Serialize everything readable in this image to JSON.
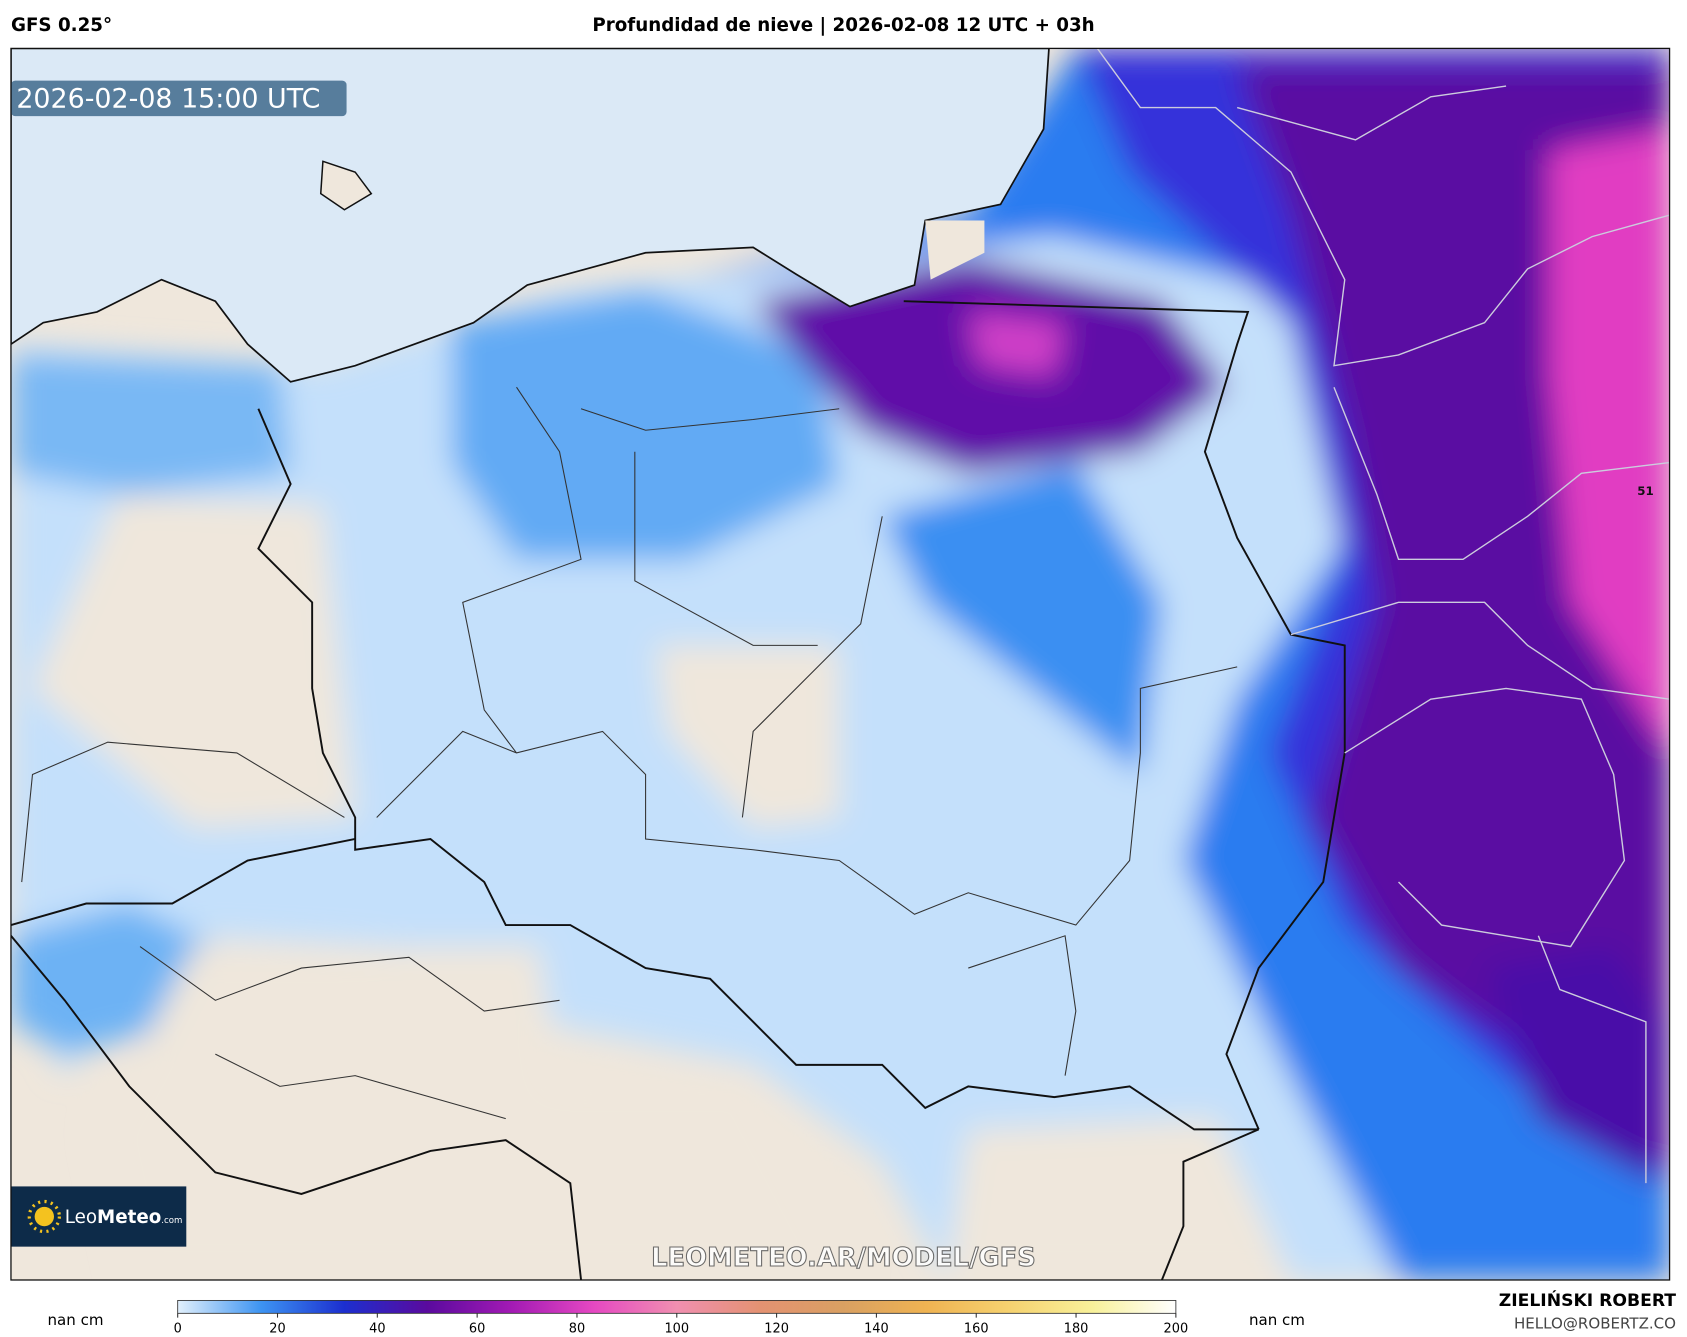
{
  "header": {
    "model": "GFS 0.25°",
    "title": "Profundidad de nieve | 2026-02-08 12 UTC + 03h"
  },
  "map": {
    "valid_time": "2026-02-08 15:00 UTC",
    "watermark": "LEOMETEO.AR/MODEL/GFS",
    "edge_label": "51",
    "logo": {
      "leo": "Leo",
      "meteo": "Meteo",
      "suffix": ".com"
    }
  },
  "colorbar": {
    "lim": [
      0,
      200
    ],
    "ticks": [
      0,
      20,
      40,
      60,
      80,
      100,
      120,
      140,
      160,
      180,
      200
    ],
    "colors": [
      "#e2f0fc",
      "#3d94f2",
      "#1c2fcf",
      "#5a0a9e",
      "#a21ab4",
      "#e548c2",
      "#f08fb0",
      "#e49272",
      "#d9a062",
      "#efb352",
      "#f6d270",
      "#f8f19a",
      "#ffffff"
    ],
    "nan_left": "nan cm",
    "nan_right": "nan cm"
  },
  "credit": {
    "author": "ZIELIŃSKI ROBERT",
    "email": "HELLO@ROBERTZ.CO"
  }
}
